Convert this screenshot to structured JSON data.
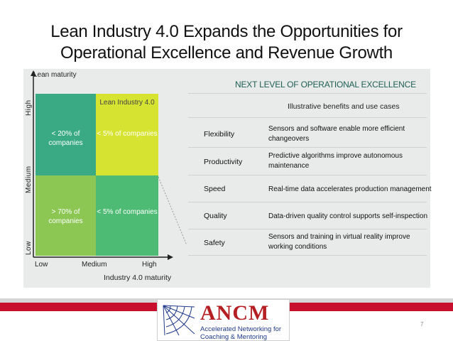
{
  "title_line1": "Lean Industry 4.0 Expands the Opportunities for",
  "title_line2": "Operational Excellence and Revenue Growth",
  "matrix": {
    "y_axis_title": "Lean maturity",
    "y_levels": [
      "High",
      "Medium",
      "Low"
    ],
    "x_levels": [
      "Low",
      "Medium",
      "High"
    ],
    "x_axis_title": "Industry 4.0 maturity",
    "lean_label": "Lean Industry 4.0",
    "top_left": "< 20% of companies",
    "top_right": "< 5% of companies",
    "bottom_left": "> 70% of companies",
    "bottom_right": "< 5% of companies",
    "colors": {
      "top_left": "#3aaa85",
      "top_right": "#d7e331",
      "bottom_left": "#8cc754",
      "bottom_right": "#4dbb74"
    }
  },
  "right": {
    "title": "NEXT LEVEL OF OPERATIONAL EXCELLENCE",
    "subtitle": "Illustrative benefits and use cases",
    "rows": [
      {
        "label": "Flexibility",
        "desc": "Sensors and software enable more efficient changeovers"
      },
      {
        "label": "Productivity",
        "desc": "Predictive algorithms improve autonomous maintenance"
      },
      {
        "label": "Speed",
        "desc": "Real-time data accelerates production management"
      },
      {
        "label": "Quality",
        "desc": "Data-driven quality control supports self-inspection"
      },
      {
        "label": "Safety",
        "desc": "Sensors and training in virtual reality improve working conditions"
      }
    ]
  },
  "footer": {
    "logo_name": "ANCM",
    "logo_sub1": "Accelerated Networking for",
    "logo_sub2": "Coaching & Mentoring",
    "page_number": "7",
    "colors": {
      "red": "#c8102e",
      "gray": "#d6d6d6"
    }
  }
}
